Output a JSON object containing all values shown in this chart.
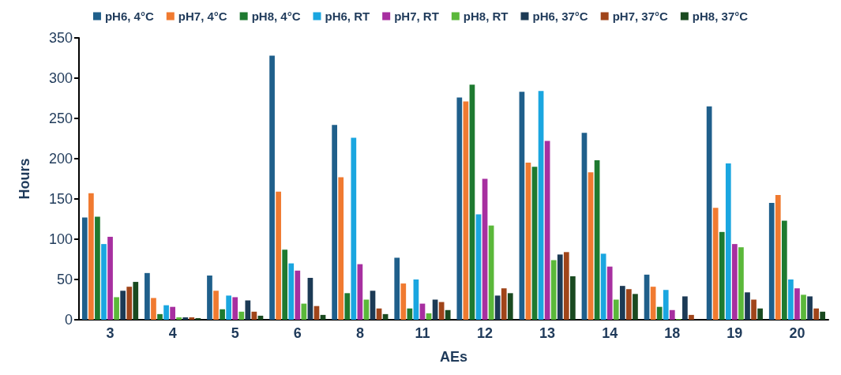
{
  "chart_data": {
    "type": "bar",
    "xlabel": "AEs",
    "ylabel": "Hours",
    "categories": [
      "3",
      "4",
      "5",
      "6",
      "8",
      "11",
      "12",
      "13",
      "14",
      "18",
      "19",
      "20"
    ],
    "ylim": [
      0,
      350
    ],
    "yticks": [
      0,
      50,
      100,
      150,
      200,
      250,
      300,
      350
    ],
    "grid": false,
    "legend": "top",
    "series": [
      {
        "name": "pH6, 4°C",
        "color": "#1f5f8b",
        "values": [
          127,
          58,
          55,
          328,
          242,
          77,
          276,
          283,
          232,
          56,
          265,
          145
        ]
      },
      {
        "name": "pH7, 4°C",
        "color": "#f07a30",
        "values": [
          157,
          27,
          36,
          159,
          177,
          45,
          271,
          195,
          183,
          41,
          139,
          155
        ]
      },
      {
        "name": "pH8, 4°C",
        "color": "#1e7a30",
        "values": [
          128,
          7,
          13,
          87,
          33,
          14,
          292,
          190,
          198,
          16,
          109,
          123
        ]
      },
      {
        "name": "pH6, RT",
        "color": "#1aa6e0",
        "values": [
          94,
          18,
          30,
          70,
          226,
          50,
          131,
          284,
          82,
          37,
          194,
          50
        ]
      },
      {
        "name": "pH7, RT",
        "color": "#a72fa0",
        "values": [
          103,
          16,
          28,
          61,
          69,
          20,
          175,
          222,
          66,
          12,
          94,
          39
        ]
      },
      {
        "name": "pH8, RT",
        "color": "#5bb83a",
        "values": [
          28,
          3,
          10,
          20,
          25,
          8,
          117,
          74,
          25,
          1,
          90,
          31
        ]
      },
      {
        "name": "pH6, 37°C",
        "color": "#1c3a55",
        "values": [
          36,
          3,
          24,
          52,
          36,
          25,
          30,
          81,
          42,
          29,
          34,
          29
        ]
      },
      {
        "name": "pH7, 37°C",
        "color": "#a0451a",
        "values": [
          41,
          3,
          10,
          17,
          14,
          22,
          39,
          84,
          38,
          6,
          25,
          14
        ]
      },
      {
        "name": "pH8, 37°C",
        "color": "#1a4a20",
        "values": [
          47,
          2,
          5,
          6,
          7,
          12,
          33,
          54,
          32,
          0,
          14,
          10
        ]
      }
    ]
  }
}
